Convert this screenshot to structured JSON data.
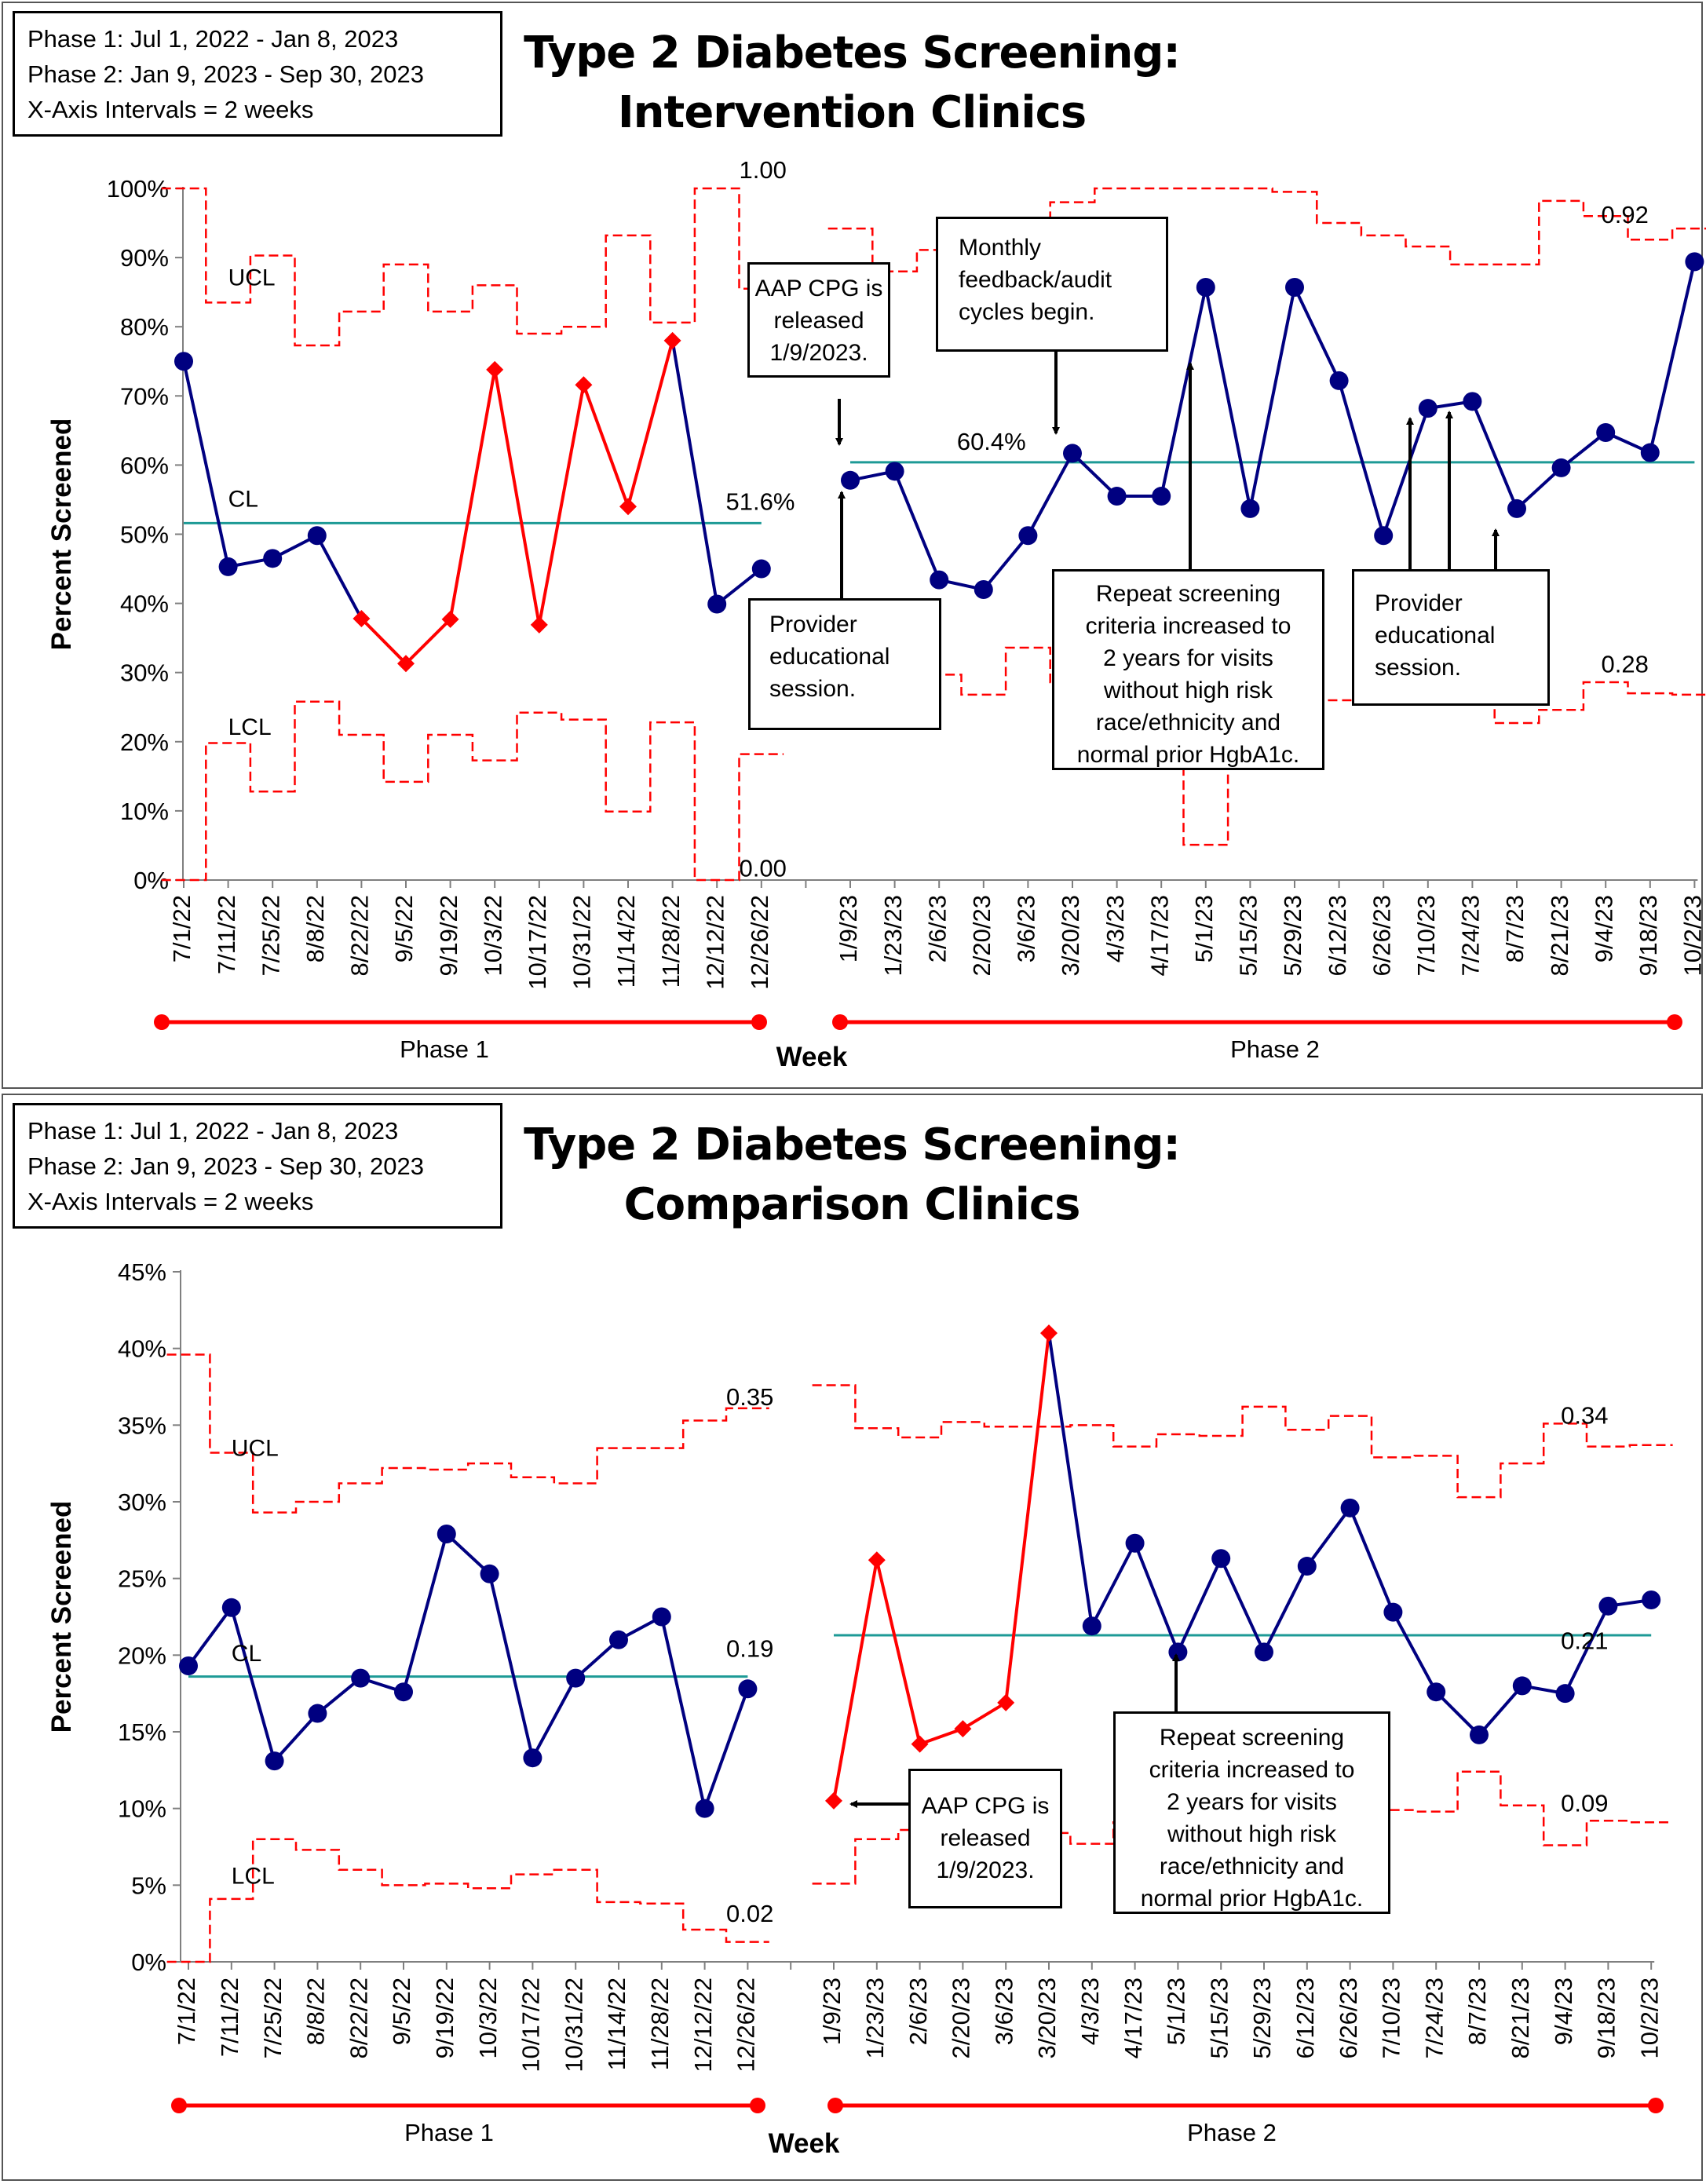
{
  "charts": [
    {
      "id": "top",
      "info_lines": [
        "Phase 1: Jul  1, 2022 - Jan 8, 2023",
        "Phase 2: Jan 9, 2023 - Sep 30, 2023",
        "X-Axis Intervals = 2 weeks"
      ],
      "title_line1": "Type 2 Diabetes Screening:",
      "title_line2": "Intervention Clinics",
      "ylabel": "Percent Screened",
      "xlabel": "Week",
      "phase1_label": "Phase 1",
      "phase2_label": "Phase 2",
      "y_ticks": [
        "0%",
        "10%",
        "20%",
        "30%",
        "40%",
        "50%",
        "60%",
        "70%",
        "80%",
        "90%",
        "100%"
      ],
      "ylim": [
        0,
        100
      ],
      "series_labels": {
        "ucl": "UCL",
        "cl": "CL",
        "lcl": "LCL"
      },
      "value_labels": [
        {
          "text": "1.00",
          "x": 12.5,
          "y": 101.5
        },
        {
          "text": "0.00",
          "x": 12.5,
          "y": 0.5
        },
        {
          "text": "51.6%",
          "x": 12.2,
          "y": 53.5
        },
        {
          "text": "60.4%",
          "x": 17.4,
          "y": 62.2
        },
        {
          "text": "0.92",
          "x": 31.9,
          "y": 95.0
        },
        {
          "text": "0.28",
          "x": 31.9,
          "y": 30.0
        }
      ],
      "annotations": [
        {
          "name": "aap-cpg-annotation",
          "text": "AAP CPG is\nreleased\n1/9/2023.",
          "align": "center"
        },
        {
          "name": "monthly-feedback-annotation",
          "text": "Monthly\nfeedback/audit\ncycles begin.",
          "align": "left"
        },
        {
          "name": "provider-session-annotation-1",
          "text": "Provider\neducational\nsession.",
          "align": "left"
        },
        {
          "name": "repeat-screening-annotation",
          "text": "Repeat screening\ncriteria increased to\n2 years for visits\nwithout high risk\nrace/ethnicity and\nnormal prior HgbA1c.",
          "align": "center"
        },
        {
          "name": "provider-session-annotation-2",
          "text": "Provider\neducational\nsession.",
          "align": "left"
        }
      ],
      "chart_data": {
        "type": "line",
        "title": "Type 2 Diabetes Screening: Intervention Clinics",
        "xlabel": "Week",
        "ylabel": "Percent Screened",
        "ylim": [
          0,
          100
        ],
        "categories": [
          "7/1/22",
          "7/11/22",
          "7/25/22",
          "8/8/22",
          "8/22/22",
          "9/5/22",
          "9/19/22",
          "10/3/22",
          "10/17/22",
          "10/31/22",
          "11/14/22",
          "11/28/22",
          "12/12/22",
          "12/26/22",
          "1/9/23",
          "1/23/23",
          "2/6/23",
          "2/20/23",
          "3/6/23",
          "3/20/23",
          "4/3/23",
          "4/17/23",
          "5/1/23",
          "5/15/23",
          "5/29/23",
          "6/12/23",
          "6/26/23",
          "7/10/23",
          "7/24/23",
          "8/7/23",
          "8/21/23",
          "9/4/23",
          "9/18/23",
          "10/2/23"
        ],
        "phases": [
          {
            "name": "Phase 1",
            "x": [
              0,
              1,
              2,
              3,
              4,
              5,
              6,
              7,
              8,
              9,
              10,
              11,
              12,
              13
            ],
            "percent_screened": [
              75,
              45.3,
              46.5,
              49.8,
              37.8,
              31.3,
              37.7,
              73.8,
              36.9,
              71.6,
              54,
              78,
              39.9,
              45
            ],
            "out_of_control": [
              false,
              false,
              false,
              false,
              true,
              true,
              true,
              true,
              true,
              true,
              true,
              true,
              false,
              false
            ],
            "cl": 51.6,
            "ucl": [
              100,
              83.5,
              90.3,
              77.3,
              82.2,
              89,
              82.2,
              86,
              79,
              80,
              93.2,
              80.6,
              100,
              85.5
            ],
            "lcl": [
              0,
              19.8,
              12.8,
              25.8,
              21,
              14.2,
              21,
              17.3,
              24.2,
              23.2,
              9.9,
              22.8,
              0,
              18.2
            ]
          },
          {
            "name": "Phase 2",
            "x": [
              15,
              16,
              17,
              18,
              19,
              20,
              21,
              22,
              23,
              24,
              25,
              26,
              27,
              28,
              29,
              30,
              31,
              32,
              33,
              34
            ],
            "percent_screened": [
              57.8,
              59.1,
              43.4,
              42,
              49.8,
              61.7,
              55.5,
              55.5,
              85.7,
              53.7,
              85.7,
              72.2,
              49.8,
              68.2,
              69.2,
              53.7,
              59.6,
              64.7,
              61.8,
              89.4
            ],
            "out_of_control": [
              false,
              false,
              false,
              false,
              false,
              false,
              false,
              false,
              false,
              false,
              false,
              false,
              false,
              false,
              false,
              false,
              false,
              false,
              false,
              false
            ],
            "cl": 60.4,
            "ucl": [
              94.2,
              88,
              91.1,
              95.7,
              84.8,
              98,
              100,
              100,
              100,
              100,
              99.5,
              95,
              93.2,
              91.6,
              89,
              89,
              98.2,
              96,
              92.6,
              94.2
            ],
            "lcl": [
              26.5,
              32.9,
              29.7,
              26.8,
              33.6,
              28.6,
              23.6,
              20,
              5.1,
              22.5,
              22.5,
              26,
              27.7,
              29.4,
              31.7,
              22.7,
              24.6,
              28.6,
              27,
              26.8
            ]
          }
        ]
      }
    },
    {
      "id": "bottom",
      "info_lines": [
        "Phase 1: Jul  1, 2022 - Jan 8, 2023",
        "Phase 2: Jan 9, 2023 - Sep 30, 2023",
        "X-Axis Intervals = 2 weeks"
      ],
      "title_line1": "Type 2 Diabetes Screening:",
      "title_line2": "Comparison Clinics",
      "ylabel": "Percent Screened",
      "xlabel": "Week",
      "phase1_label": "Phase 1",
      "phase2_label": "Phase 2",
      "y_ticks": [
        "0%",
        "5%",
        "10%",
        "15%",
        "20%",
        "25%",
        "30%",
        "35%",
        "40%",
        "45%"
      ],
      "ylim": [
        0,
        45
      ],
      "series_labels": {
        "ucl": "UCL",
        "cl": "CL",
        "lcl": "LCL"
      },
      "value_labels": [
        {
          "text": "0.35",
          "x": 12.5,
          "y": 36.3
        },
        {
          "text": "0.19",
          "x": 12.5,
          "y": 19.9
        },
        {
          "text": "0.02",
          "x": 12.5,
          "y": 2.6
        },
        {
          "text": "0.34",
          "x": 31.9,
          "y": 35.1
        },
        {
          "text": "0.21",
          "x": 31.9,
          "y": 20.4
        },
        {
          "text": "0.09",
          "x": 31.9,
          "y": 9.8
        }
      ],
      "annotations": [
        {
          "name": "aap-cpg-annotation",
          "text": "AAP CPG is\nreleased\n1/9/2023.",
          "align": "center"
        },
        {
          "name": "repeat-screening-annotation",
          "text": "Repeat screening\ncriteria increased to\n2 years for visits\nwithout high risk\nrace/ethnicity and\nnormal prior HgbA1c.",
          "align": "center"
        }
      ],
      "chart_data": {
        "type": "line",
        "title": "Type 2 Diabetes Screening: Comparison Clinics",
        "xlabel": "Week",
        "ylabel": "Percent Screened",
        "ylim": [
          0,
          45
        ],
        "categories": [
          "7/1/22",
          "7/11/22",
          "7/25/22",
          "8/8/22",
          "8/22/22",
          "9/5/22",
          "9/19/22",
          "10/3/22",
          "10/17/22",
          "10/31/22",
          "11/14/22",
          "11/28/22",
          "12/12/22",
          "12/26/22",
          "1/9/23",
          "1/23/23",
          "2/6/23",
          "2/20/23",
          "3/6/23",
          "3/20/23",
          "4/3/23",
          "4/17/23",
          "5/1/23",
          "5/15/23",
          "5/29/23",
          "6/12/23",
          "6/26/23",
          "7/10/23",
          "7/24/23",
          "8/7/23",
          "8/21/23",
          "9/4/23",
          "9/18/23",
          "10/2/23"
        ],
        "phases": [
          {
            "name": "Phase 1",
            "x": [
              0,
              1,
              2,
              3,
              4,
              5,
              6,
              7,
              8,
              9,
              10,
              11,
              12,
              13
            ],
            "percent_screened": [
              19.3,
              23.1,
              13.1,
              16.2,
              18.5,
              17.6,
              27.9,
              25.3,
              13.3,
              18.5,
              21,
              22.5,
              10,
              17.8
            ],
            "out_of_control": [
              false,
              false,
              false,
              false,
              false,
              false,
              false,
              false,
              false,
              false,
              false,
              false,
              false,
              false
            ],
            "cl": 18.6,
            "ucl": [
              39.6,
              33.2,
              29.3,
              30,
              31.2,
              32.2,
              32.1,
              32.5,
              31.6,
              31.2,
              33.5,
              33.5,
              35.3,
              36.1
            ],
            "lcl": [
              0,
              4.1,
              8,
              7.3,
              6,
              5,
              5.1,
              4.8,
              5.7,
              6,
              3.9,
              3.8,
              2.1,
              1.3
            ]
          },
          {
            "name": "Phase 2",
            "x": [
              15,
              16,
              17,
              18,
              19,
              20,
              21,
              22,
              23,
              24,
              25,
              26,
              27,
              28,
              29,
              30,
              31,
              32,
              33,
              34
            ],
            "percent_screened": [
              10.5,
              26.2,
              14.2,
              15.2,
              16.9,
              41,
              21.9,
              27.3,
              20.2,
              26.3,
              20.2,
              25.8,
              29.6,
              22.8,
              17.6,
              14.8,
              18,
              17.5,
              23.2,
              23.6
            ],
            "out_of_control": [
              true,
              true,
              true,
              true,
              true,
              true,
              false,
              false,
              false,
              false,
              false,
              false,
              false,
              false,
              false,
              false,
              false,
              false,
              false,
              false
            ],
            "cl": 21.3,
            "ucl": [
              37.6,
              34.8,
              34.2,
              35.2,
              34.9,
              34.9,
              35,
              33.6,
              34.4,
              34.3,
              36.2,
              34.7,
              35.6,
              32.9,
              33,
              30.3,
              32.5,
              35.1,
              33.6,
              33.7
            ],
            "lcl": [
              5.1,
              8,
              8.6,
              7.7,
              8.4,
              8.4,
              7.7,
              9.1,
              9.2,
              9.3,
              7.6,
              8.8,
              8,
              9.9,
              9.8,
              12.4,
              10.2,
              7.6,
              9.2,
              9.1
            ]
          }
        ]
      }
    }
  ]
}
